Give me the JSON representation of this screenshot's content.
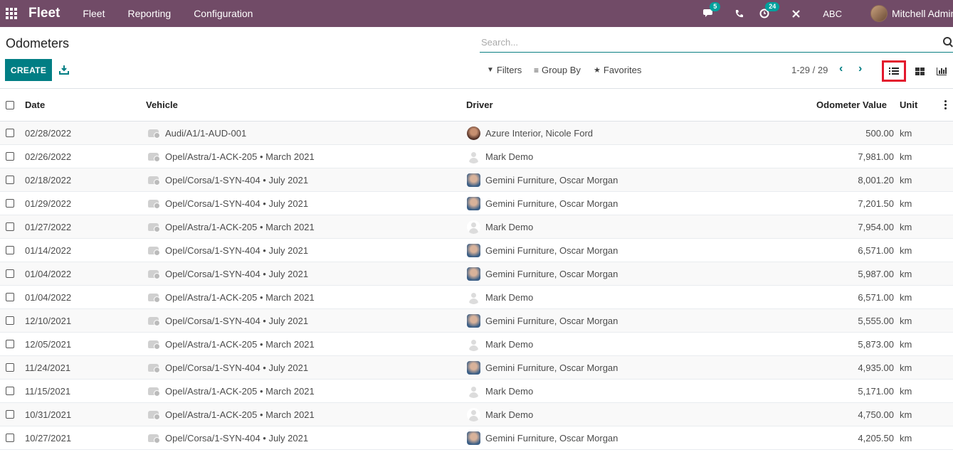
{
  "navbar": {
    "brand": "Fleet",
    "menu": [
      "Fleet",
      "Reporting",
      "Configuration"
    ],
    "messages_badge": "5",
    "activities_badge": "24",
    "company": "ABC",
    "user": "Mitchell Admin"
  },
  "control": {
    "title": "Odometers",
    "search_placeholder": "Search...",
    "create_label": "CREATE",
    "filters_label": "Filters",
    "groupby_label": "Group By",
    "favorites_label": "Favorites",
    "pager": "1-29 / 29",
    "active_view": "list"
  },
  "table": {
    "headers": {
      "date": "Date",
      "vehicle": "Vehicle",
      "driver": "Driver",
      "value": "Odometer Value",
      "unit": "Unit"
    },
    "rows": [
      {
        "date": "02/28/2022",
        "vehicle": "Audi/A1/1-AUD-001",
        "driver": "Azure Interior, Nicole Ford",
        "avatar": "azure",
        "value": "500.00",
        "unit": "km"
      },
      {
        "date": "02/26/2022",
        "vehicle": "Opel/Astra/1-ACK-205 • March 2021",
        "driver": "Mark Demo",
        "avatar": "mark",
        "value": "7,981.00",
        "unit": "km"
      },
      {
        "date": "02/18/2022",
        "vehicle": "Opel/Corsa/1-SYN-404 • July 2021",
        "driver": "Gemini Furniture, Oscar Morgan",
        "avatar": "oscar",
        "value": "8,001.20",
        "unit": "km"
      },
      {
        "date": "01/29/2022",
        "vehicle": "Opel/Corsa/1-SYN-404 • July 2021",
        "driver": "Gemini Furniture, Oscar Morgan",
        "avatar": "oscar",
        "value": "7,201.50",
        "unit": "km"
      },
      {
        "date": "01/27/2022",
        "vehicle": "Opel/Astra/1-ACK-205 • March 2021",
        "driver": "Mark Demo",
        "avatar": "mark",
        "value": "7,954.00",
        "unit": "km"
      },
      {
        "date": "01/14/2022",
        "vehicle": "Opel/Corsa/1-SYN-404 • July 2021",
        "driver": "Gemini Furniture, Oscar Morgan",
        "avatar": "oscar",
        "value": "6,571.00",
        "unit": "km"
      },
      {
        "date": "01/04/2022",
        "vehicle": "Opel/Corsa/1-SYN-404 • July 2021",
        "driver": "Gemini Furniture, Oscar Morgan",
        "avatar": "oscar",
        "value": "5,987.00",
        "unit": "km"
      },
      {
        "date": "01/04/2022",
        "vehicle": "Opel/Astra/1-ACK-205 • March 2021",
        "driver": "Mark Demo",
        "avatar": "mark",
        "value": "6,571.00",
        "unit": "km"
      },
      {
        "date": "12/10/2021",
        "vehicle": "Opel/Corsa/1-SYN-404 • July 2021",
        "driver": "Gemini Furniture, Oscar Morgan",
        "avatar": "oscar",
        "value": "5,555.00",
        "unit": "km"
      },
      {
        "date": "12/05/2021",
        "vehicle": "Opel/Astra/1-ACK-205 • March 2021",
        "driver": "Mark Demo",
        "avatar": "mark",
        "value": "5,873.00",
        "unit": "km"
      },
      {
        "date": "11/24/2021",
        "vehicle": "Opel/Corsa/1-SYN-404 • July 2021",
        "driver": "Gemini Furniture, Oscar Morgan",
        "avatar": "oscar",
        "value": "4,935.00",
        "unit": "km"
      },
      {
        "date": "11/15/2021",
        "vehicle": "Opel/Astra/1-ACK-205 • March 2021",
        "driver": "Mark Demo",
        "avatar": "mark",
        "value": "5,171.00",
        "unit": "km"
      },
      {
        "date": "10/31/2021",
        "vehicle": "Opel/Astra/1-ACK-205 • March 2021",
        "driver": "Mark Demo",
        "avatar": "mark",
        "value": "4,750.00",
        "unit": "km"
      },
      {
        "date": "10/27/2021",
        "vehicle": "Opel/Corsa/1-SYN-404 • July 2021",
        "driver": "Gemini Furniture, Oscar Morgan",
        "avatar": "oscar",
        "value": "4,205.50",
        "unit": "km"
      }
    ]
  }
}
